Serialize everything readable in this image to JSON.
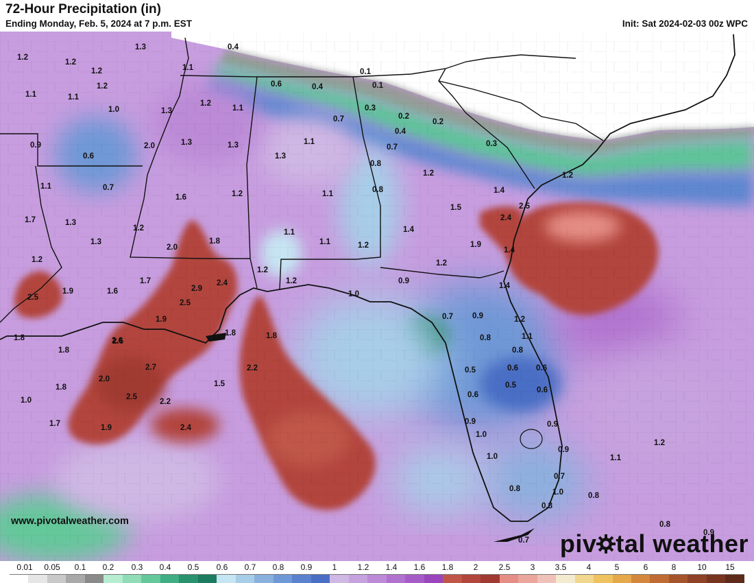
{
  "header": {
    "title": "72-Hour Precipitation (in)",
    "subtitle": "Ending Monday, Feb. 5, 2024 at 7 p.m. EST",
    "init": "Init: Sat 2024-02-03 00z WPC"
  },
  "branding": {
    "website": "www.pivotalweather.com",
    "brand_before": "piv",
    "brand_after": "tal weather",
    "brand_icon": "gear-o-icon"
  },
  "legend": {
    "labels": [
      "0.01",
      "0.05",
      "0.1",
      "0.2",
      "0.3",
      "0.4",
      "0.5",
      "0.6",
      "0.7",
      "0.8",
      "0.9",
      "1",
      "1.2",
      "1.4",
      "1.6",
      "1.8",
      "2",
      "2.5",
      "3",
      "3.5",
      "4",
      "5",
      "6",
      "8",
      "10",
      "15"
    ],
    "colors": [
      "#ffffff",
      "#e6e6e6",
      "#c9c9c9",
      "#a9a9a9",
      "#8a8a8a",
      "#b6ecd0",
      "#8fdcb6",
      "#64c89a",
      "#3fae84",
      "#29926f",
      "#1d7b62",
      "#c6e5f2",
      "#a7cde8",
      "#8ab1de",
      "#6f98d6",
      "#5b82cf",
      "#4a6ec5",
      "#cfb8e4",
      "#c6a2de",
      "#bc8ad7",
      "#b172cf",
      "#a65cc6",
      "#9b45bd",
      "#c05648",
      "#b2453c",
      "#a03a33",
      "#e58e85",
      "#eaa59c",
      "#f0c1b8",
      "#f4ead0",
      "#f1d690",
      "#efc260",
      "#e5a84b",
      "#d3873d",
      "#bf6b33",
      "#a6542c",
      "#8e4226",
      "#773520",
      "#5e2a1a"
    ]
  },
  "map": {
    "values": [
      "1.2",
      "1.3",
      "1.2",
      "1.1",
      "0.4",
      "1.1",
      "1.2",
      "1.1",
      "1.0",
      "1.3",
      "1.2",
      "1.1",
      "0.6",
      "0.4",
      "0.1",
      "0.1",
      "0.6",
      "2.0",
      "0.7",
      "0.3",
      "1.2",
      "1.3",
      "1.3",
      "0.2",
      "0.2",
      "1.1",
      "0.4",
      "0.3",
      "0.7",
      "0.7",
      "0.8",
      "1.3",
      "1.2",
      "0.9",
      "1.2",
      "1.1",
      "0.8",
      "1.1",
      "1.6",
      "1.2",
      "1.4",
      "1.7",
      "1.3",
      "2.5",
      "2.4",
      "1.5",
      "1.3",
      "1.2",
      "1.4",
      "1.2",
      "1.1",
      "1.1",
      "1.2",
      "1.9",
      "1.8",
      "2.0",
      "2.6",
      "1.2",
      "1.2",
      "1.2",
      "1.4",
      "2.5",
      "1.7",
      "2.9",
      "2.4",
      "0.9",
      "1.9",
      "1.6",
      "1.0",
      "1.4",
      "2.5",
      "0.7",
      "0.9",
      "1.9",
      "1.2",
      "1.8",
      "1.8",
      "1.8",
      "1.1",
      "2.6",
      "0.8",
      "1.8",
      "0.8",
      "2.7",
      "2.2",
      "0.5",
      "0.6",
      "0.6",
      "2.0",
      "0.5",
      "0.6",
      "1.8",
      "1.5",
      "0.6",
      "1.0",
      "2.5",
      "2.2",
      "1.7",
      "0.9",
      "0.9",
      "1.9",
      "2.4",
      "1.0",
      "0.9",
      "1.2",
      "1.0",
      "1.1",
      "0.7",
      "0.8",
      "1.0",
      "0.8",
      "0.8",
      "0.8",
      "0.9",
      "0.7"
    ]
  }
}
